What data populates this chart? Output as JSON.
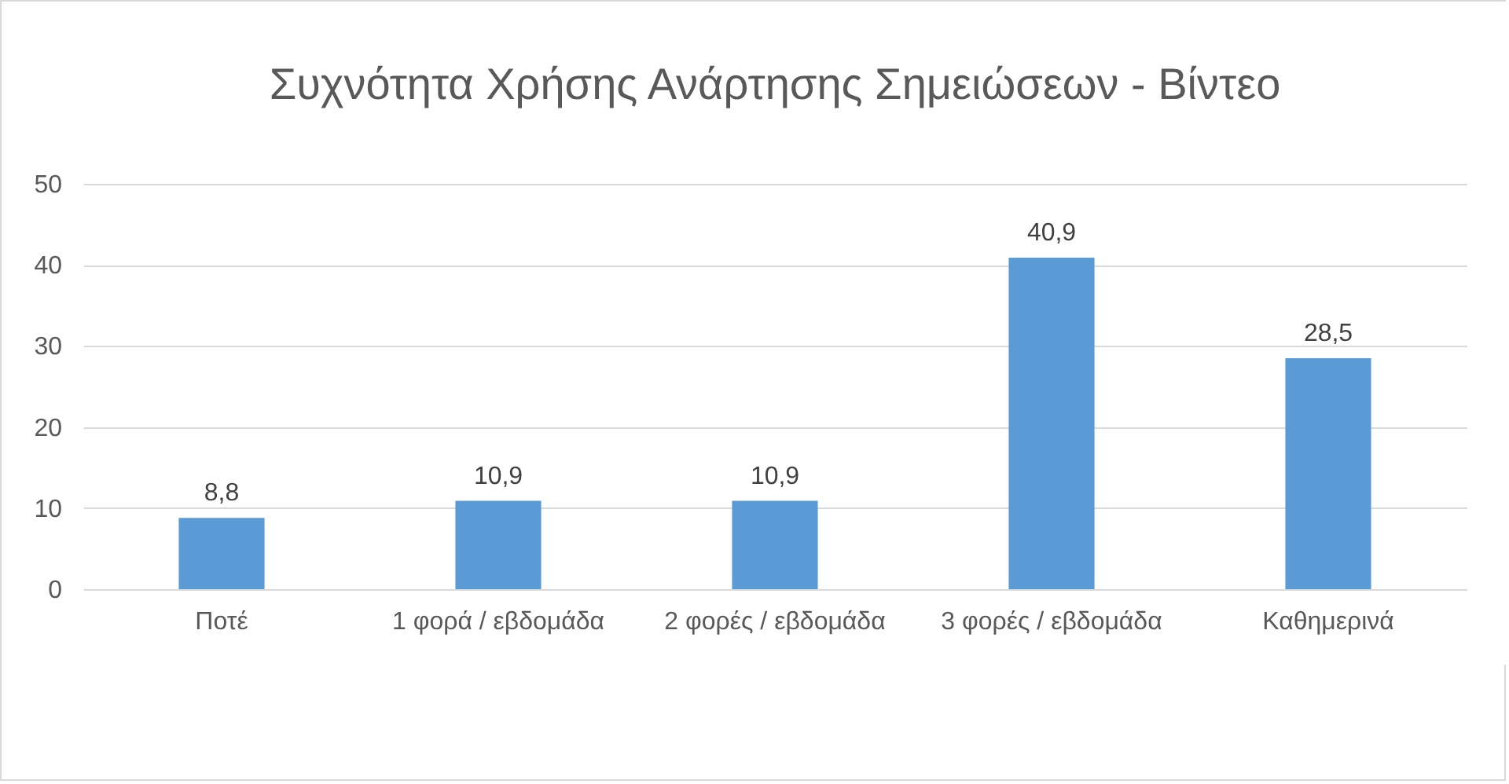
{
  "chart_data": {
    "type": "bar",
    "title": "Συχνότητα Χρήσης Ανάρτησης Σημειώσεων - Βίντεο",
    "categories": [
      "Ποτέ",
      "1 φορά / εβδομάδα",
      "2 φορές / εβδομάδα",
      "3 φορές / εβδομάδα",
      "Καθημερινά"
    ],
    "values": [
      8.8,
      10.9,
      10.9,
      40.9,
      28.5
    ],
    "value_labels": [
      "8,8",
      "10,9",
      "10,9",
      "40,9",
      "28,5"
    ],
    "color": "#5b9bd5",
    "ylim": [
      0,
      50
    ],
    "yticks": [
      0,
      10,
      20,
      30,
      40,
      50
    ],
    "grid": "y"
  }
}
